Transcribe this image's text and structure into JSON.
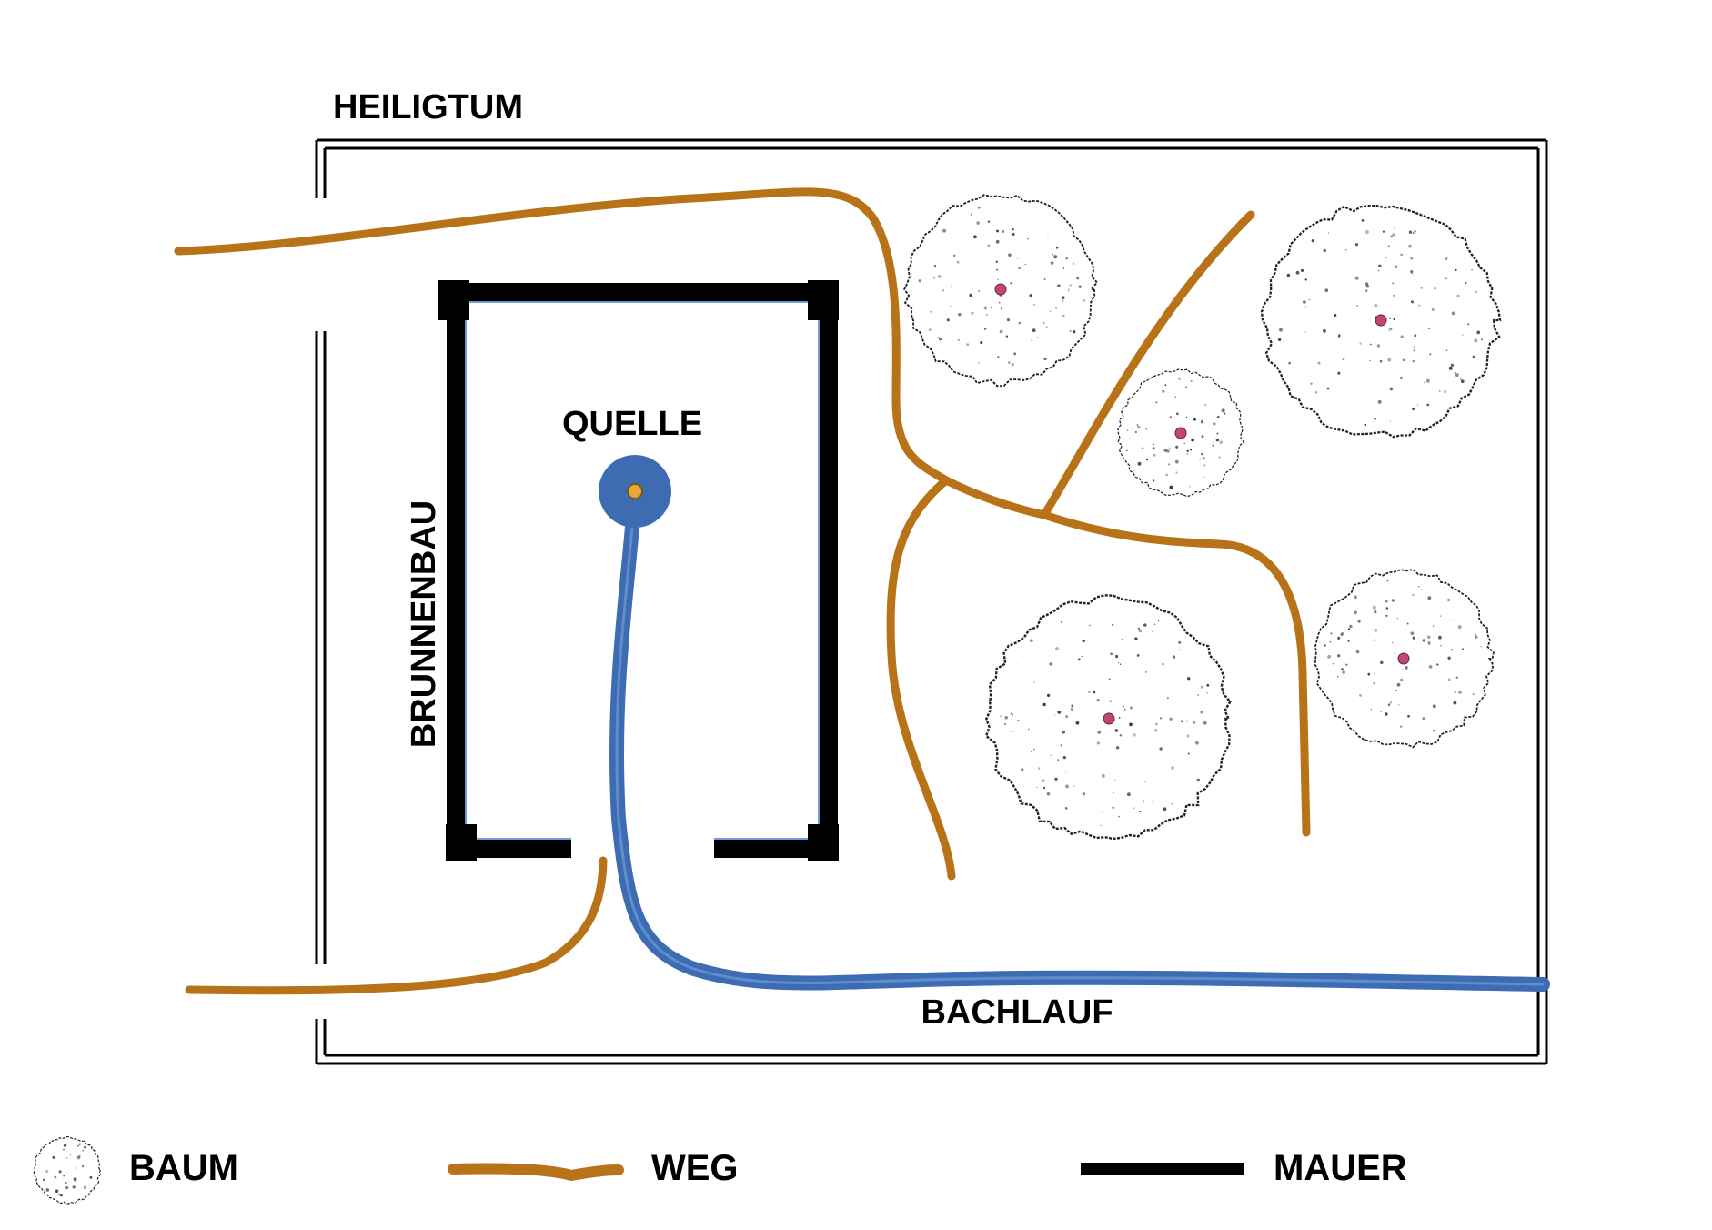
{
  "labels": {
    "sanctuary": "HEILIGTUM",
    "spring": "QUELLE",
    "well_house": "BRUNNENBAU",
    "stream": "BACHLAUF"
  },
  "legend": {
    "tree": "BAUM",
    "path": "WEG",
    "wall": "MAUER"
  },
  "colors": {
    "path": "#B87318",
    "wall": "#000000",
    "water": "#3D6CB2",
    "spring_fill": "#3D6CB2",
    "spring_center": "#E8A93A",
    "tree_center": "#C2457A",
    "wall_inner_line": "#6F9BD8"
  },
  "icons": {
    "tree": "tree-canopy-icon",
    "spring": "spring-icon"
  }
}
